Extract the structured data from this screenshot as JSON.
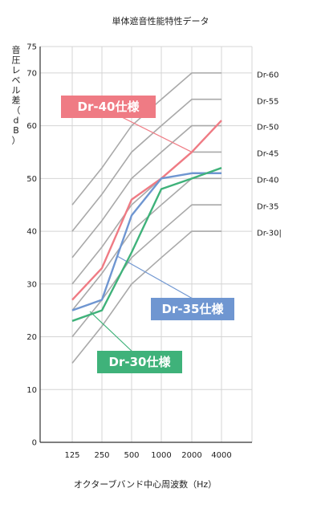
{
  "chart_data": {
    "type": "line",
    "title": "単体遮音性能特性データ",
    "xlabel": "オクターブバンド中心周波数（Hz）",
    "ylabel": "音圧レベル差（dB）",
    "ylim": [
      0,
      75
    ],
    "yticks": [
      0,
      10,
      20,
      30,
      40,
      50,
      60,
      70,
      75
    ],
    "categories": [
      "125",
      "250",
      "500",
      "1000",
      "2000",
      "4000"
    ],
    "grid": true,
    "reference_curves": [
      {
        "name": "Dr-60",
        "values": [
          45,
          52,
          60,
          65,
          70,
          70
        ]
      },
      {
        "name": "Dr-55",
        "values": [
          40,
          47,
          55,
          60,
          65,
          65
        ]
      },
      {
        "name": "Dr-50",
        "values": [
          35,
          42,
          50,
          55,
          60,
          60
        ]
      },
      {
        "name": "Dr-45",
        "values": [
          30,
          37,
          45,
          50,
          55,
          55
        ]
      },
      {
        "name": "Dr-40",
        "values": [
          25,
          32,
          40,
          45,
          50,
          50
        ]
      },
      {
        "name": "Dr-35",
        "values": [
          20,
          27,
          35,
          40,
          45,
          45
        ]
      },
      {
        "name": "Dr-30|",
        "values": [
          15,
          22,
          30,
          35,
          40,
          40
        ]
      }
    ],
    "series": [
      {
        "name": "Dr-40仕様",
        "color": "#ef7b84",
        "values": [
          27,
          33,
          46,
          50,
          55,
          61
        ]
      },
      {
        "name": "Dr-35仕様",
        "color": "#6f96d1",
        "values": [
          25,
          27,
          43,
          50,
          51,
          51
        ]
      },
      {
        "name": "Dr-30仕様",
        "color": "#3fb27a",
        "values": [
          23,
          25,
          36,
          48,
          50,
          52
        ]
      }
    ]
  }
}
